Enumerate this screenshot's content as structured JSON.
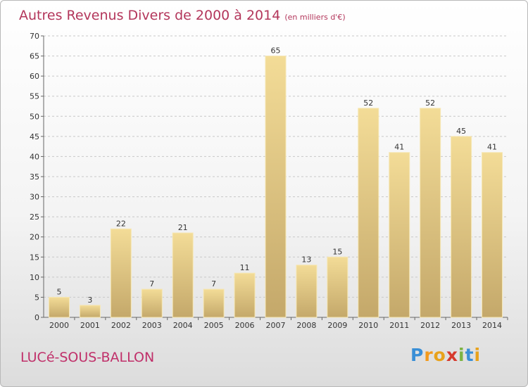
{
  "title": "Autres Revenus Divers de 2000 à 2014",
  "unit": "(en milliers d'€)",
  "commune": "LUCé-SOUS-BALLON",
  "logo": {
    "letters": [
      "P",
      "r",
      "o",
      "x",
      "i",
      "t",
      "i"
    ],
    "colors": [
      "#3a8fd6",
      "#f39a1c",
      "#e8a21b",
      "#d63a2d",
      "#7cb342",
      "#3a8fd6",
      "#e8a21b"
    ]
  },
  "chart_data": {
    "type": "bar",
    "categories": [
      "2000",
      "2001",
      "2002",
      "2003",
      "2004",
      "2005",
      "2006",
      "2007",
      "2008",
      "2009",
      "2010",
      "2011",
      "2012",
      "2013",
      "2014"
    ],
    "values": [
      5,
      3,
      22,
      7,
      21,
      7,
      11,
      65,
      13,
      15,
      52,
      41,
      52,
      45,
      41
    ],
    "ylim": [
      0,
      70
    ],
    "yticks": [
      0,
      5,
      10,
      15,
      20,
      25,
      30,
      35,
      40,
      45,
      50,
      55,
      60,
      65,
      70
    ],
    "grid": true,
    "bar_colors": [
      "#f3dc97",
      "#c4a86a"
    ]
  }
}
